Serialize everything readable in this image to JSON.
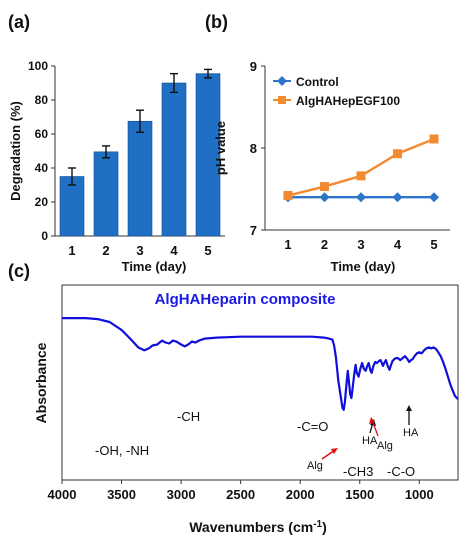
{
  "chart_data": [
    {
      "panel": "(a)",
      "type": "bar",
      "categories": [
        "1",
        "2",
        "3",
        "4",
        "5"
      ],
      "values": [
        35,
        49.5,
        67.5,
        90,
        95.5
      ],
      "errors": [
        5,
        3.5,
        6.5,
        5.5,
        2.5
      ],
      "xlabel": "Time (day)",
      "ylabel": "Degradation (%)",
      "ylim": [
        0,
        100
      ],
      "yticks": [
        "0",
        "20",
        "40",
        "60",
        "80",
        "100"
      ],
      "bar_color": "#1f6fc4",
      "grid": false
    },
    {
      "panel": "(b)",
      "type": "line",
      "x": [
        "1",
        "2",
        "3",
        "4",
        "5"
      ],
      "series": [
        {
          "name": "Control",
          "values": [
            7.4,
            7.4,
            7.4,
            7.4,
            7.4
          ],
          "color": "#2e75c9",
          "marker": "diamond"
        },
        {
          "name": "AlgHAHepEGF100",
          "values": [
            7.42,
            7.53,
            7.66,
            7.93,
            8.11
          ],
          "color": "#f28a30",
          "marker": "square"
        }
      ],
      "xlabel": "Time (day)",
      "ylabel": "pH value",
      "ylim": [
        7,
        9
      ],
      "yticks": [
        "7",
        "8",
        "9"
      ],
      "legend": "top-left",
      "grid": false
    },
    {
      "panel": "(c)",
      "type": "line",
      "title": "AlgHAHeparin  composite",
      "xlabel": "Wavenumbers (cm-1)",
      "xlabel_main": "Wavenumbers (cm",
      "xlabel_sup": "-1",
      "xlabel_end": ")",
      "ylabel": "Absorbance",
      "xlim": [
        4000,
        675
      ],
      "xticks": [
        "4000",
        "3500",
        "3000",
        "2500",
        "2000",
        "1500",
        "1000"
      ],
      "series": [
        {
          "color": "#1010dd",
          "points": [
            [
              4000,
              0.83
            ],
            [
              3800,
              0.83
            ],
            [
              3700,
              0.825
            ],
            [
              3600,
              0.81
            ],
            [
              3500,
              0.77
            ],
            [
              3420,
              0.72
            ],
            [
              3360,
              0.68
            ],
            [
              3310,
              0.665
            ],
            [
              3270,
              0.675
            ],
            [
              3240,
              0.69
            ],
            [
              3200,
              0.695
            ],
            [
              3160,
              0.715
            ],
            [
              3130,
              0.705
            ],
            [
              3100,
              0.7
            ],
            [
              3070,
              0.715
            ],
            [
              3040,
              0.71
            ],
            [
              3000,
              0.695
            ],
            [
              2970,
              0.685
            ],
            [
              2940,
              0.695
            ],
            [
              2910,
              0.71
            ],
            [
              2880,
              0.705
            ],
            [
              2850,
              0.715
            ],
            [
              2800,
              0.725
            ],
            [
              2700,
              0.73
            ],
            [
              2500,
              0.735
            ],
            [
              2300,
              0.735
            ],
            [
              2100,
              0.735
            ],
            [
              1900,
              0.735
            ],
            [
              1800,
              0.73
            ],
            [
              1760,
              0.725
            ],
            [
              1730,
              0.72
            ],
            [
              1715,
              0.69
            ],
            [
              1700,
              0.63
            ],
            [
              1690,
              0.57
            ],
            [
              1680,
              0.51
            ],
            [
              1665,
              0.45
            ],
            [
              1655,
              0.41
            ],
            [
              1645,
              0.37
            ],
            [
              1635,
              0.36
            ],
            [
              1625,
              0.4
            ],
            [
              1610,
              0.5
            ],
            [
              1600,
              0.56
            ],
            [
              1590,
              0.5
            ],
            [
              1580,
              0.44
            ],
            [
              1570,
              0.42
            ],
            [
              1560,
              0.47
            ],
            [
              1545,
              0.55
            ],
            [
              1535,
              0.59
            ],
            [
              1525,
              0.55
            ],
            [
              1510,
              0.53
            ],
            [
              1495,
              0.57
            ],
            [
              1480,
              0.6
            ],
            [
              1465,
              0.57
            ],
            [
              1450,
              0.56
            ],
            [
              1440,
              0.58
            ],
            [
              1425,
              0.6
            ],
            [
              1410,
              0.56
            ],
            [
              1400,
              0.55
            ],
            [
              1385,
              0.585
            ],
            [
              1370,
              0.605
            ],
            [
              1355,
              0.6
            ],
            [
              1340,
              0.61
            ],
            [
              1325,
              0.615
            ],
            [
              1315,
              0.6
            ],
            [
              1305,
              0.585
            ],
            [
              1295,
              0.6
            ],
            [
              1280,
              0.615
            ],
            [
              1265,
              0.585
            ],
            [
              1250,
              0.565
            ],
            [
              1240,
              0.585
            ],
            [
              1225,
              0.61
            ],
            [
              1210,
              0.62
            ],
            [
              1195,
              0.625
            ],
            [
              1180,
              0.625
            ],
            [
              1160,
              0.615
            ],
            [
              1140,
              0.625
            ],
            [
              1120,
              0.635
            ],
            [
              1100,
              0.62
            ],
            [
              1085,
              0.605
            ],
            [
              1070,
              0.615
            ],
            [
              1055,
              0.62
            ],
            [
              1040,
              0.635
            ],
            [
              1020,
              0.65
            ],
            [
              1000,
              0.655
            ],
            [
              980,
              0.65
            ],
            [
              960,
              0.665
            ],
            [
              940,
              0.675
            ],
            [
              920,
              0.68
            ],
            [
              900,
              0.675
            ],
            [
              880,
              0.68
            ],
            [
              860,
              0.672
            ],
            [
              840,
              0.655
            ],
            [
              820,
              0.635
            ],
            [
              800,
              0.605
            ],
            [
              780,
              0.57
            ],
            [
              760,
              0.53
            ],
            [
              740,
              0.49
            ],
            [
              720,
              0.46
            ],
            [
              700,
              0.43
            ],
            [
              675,
              0.415
            ]
          ]
        }
      ],
      "annotations": [
        "-OH, -NH",
        "-CH",
        "-C=O",
        "Alg",
        "HA",
        "Alg",
        "HA",
        "-CH3",
        "-C-O"
      ]
    }
  ]
}
